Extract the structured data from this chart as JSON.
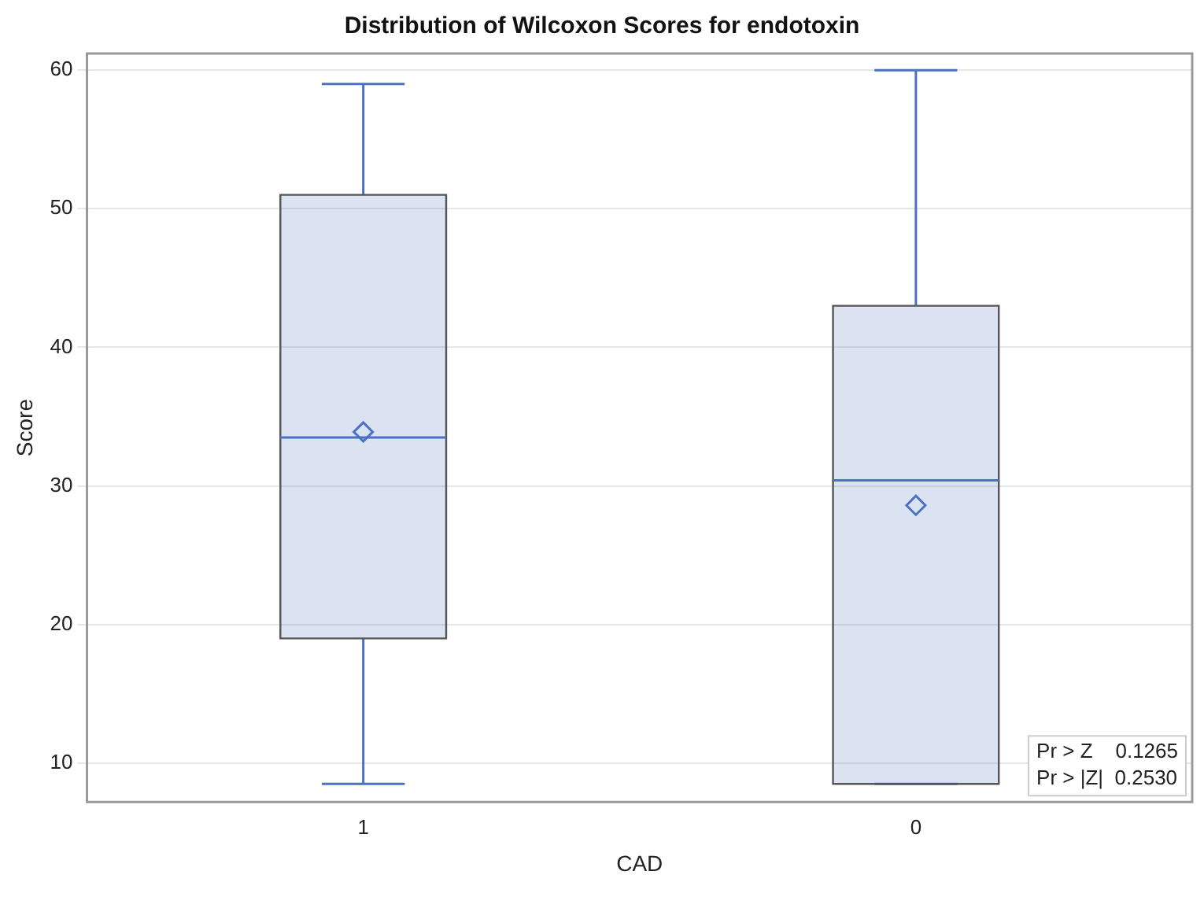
{
  "chart_data": {
    "type": "box",
    "title": "Distribution of Wilcoxon Scores for endotoxin",
    "xlabel": "CAD",
    "ylabel": "Score",
    "categories": [
      "1",
      "0"
    ],
    "boxes": [
      {
        "low": 8.5,
        "q1": 19,
        "median": 33.5,
        "q3": 51,
        "high": 59,
        "mean": 33.9
      },
      {
        "low": 8.5,
        "q1": 8.5,
        "median": 30.4,
        "q3": 43,
        "high": 60,
        "mean": 28.6
      }
    ],
    "color": "#4a72c4",
    "ylim": [
      7.2,
      61.2
    ],
    "yticks": [
      10,
      20,
      30,
      40,
      50,
      60
    ],
    "grid": "y",
    "legend": false,
    "marker": "diamond",
    "annotations": [
      "Pr > Z    0.1265",
      "Pr > |Z|  0.2530"
    ]
  }
}
